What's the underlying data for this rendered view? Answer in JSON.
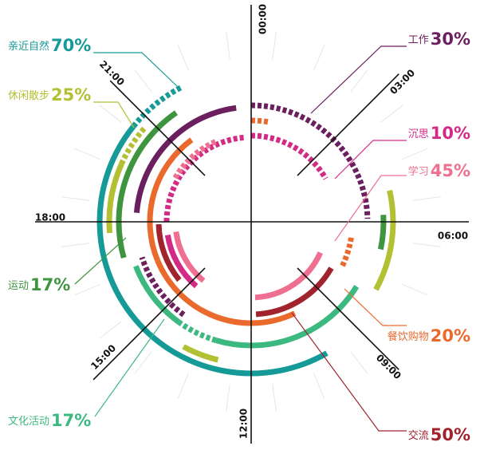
{
  "chart_data": {
    "type": "radial-timeline",
    "time_unit": "hour of day (24h clock, 00:00 at top, clockwise)",
    "time_labels": [
      {
        "text": "00:00",
        "hour": 0
      },
      {
        "text": "03:00",
        "hour": 3
      },
      {
        "text": "06:00",
        "hour": 6
      },
      {
        "text": "09:00",
        "hour": 9
      },
      {
        "text": "12:00",
        "hour": 12
      },
      {
        "text": "15:00",
        "hour": 15
      },
      {
        "text": "18:00",
        "hour": 18
      },
      {
        "text": "21:00",
        "hour": 21
      }
    ],
    "categories": [
      {
        "name": "亲近自然",
        "percent": "70%",
        "color": "#169a98",
        "label_side": "left"
      },
      {
        "name": "休闲散步",
        "percent": "25%",
        "color": "#b4c033",
        "label_side": "left"
      },
      {
        "name": "运动",
        "percent": "17%",
        "color": "#3f9440",
        "label_side": "left"
      },
      {
        "name": "文化活动",
        "percent": "17%",
        "color": "#3cb980",
        "label_side": "left"
      },
      {
        "name": "工作",
        "percent": "30%",
        "color": "#6b1f5e",
        "label_side": "right"
      },
      {
        "name": "沉思",
        "percent": "10%",
        "color": "#d32a86",
        "label_side": "right"
      },
      {
        "name": "学习",
        "percent": "45%",
        "color": "#ee6f8f",
        "label_side": "right"
      },
      {
        "name": "餐饮购物",
        "percent": "20%",
        "color": "#ea6a2e",
        "label_side": "right"
      },
      {
        "name": "交流",
        "percent": "50%",
        "color": "#a1232d",
        "label_side": "right"
      }
    ],
    "arcs": [
      {
        "category": "亲近自然",
        "start_hour": 10.0,
        "end_hour": 20.6,
        "style": "solid"
      },
      {
        "category": "亲近自然",
        "start_hour": 20.6,
        "end_hour": 22.2,
        "style": "dotted"
      },
      {
        "category": "休闲散步",
        "start_hour": 5.15,
        "end_hour": 7.9,
        "style": "solid"
      },
      {
        "category": "休闲散步",
        "start_hour": 12.9,
        "end_hour": 13.9,
        "style": "solid"
      },
      {
        "category": "休闲散步",
        "start_hour": 17.7,
        "end_hour": 19.6,
        "style": "solid"
      },
      {
        "category": "休闲散步",
        "start_hour": 19.6,
        "end_hour": 20.8,
        "style": "dotted"
      },
      {
        "category": "运动",
        "start_hour": 5.8,
        "end_hour": 6.8,
        "style": "solid"
      },
      {
        "category": "运动",
        "start_hour": 16.95,
        "end_hour": 21.7,
        "style": "solid"
      },
      {
        "category": "文化活动",
        "start_hour": 8.1,
        "end_hour": 13.1,
        "style": "solid"
      },
      {
        "category": "文化活动",
        "start_hour": 13.1,
        "end_hour": 14.4,
        "style": "dotted"
      },
      {
        "category": "文化活动",
        "start_hour": 14.4,
        "end_hour": 16.6,
        "style": "solid"
      },
      {
        "category": "工作",
        "start_hour": 0.0,
        "end_hour": 5.9,
        "style": "dotted"
      },
      {
        "category": "工作",
        "start_hour": 14.4,
        "end_hour": 16.8,
        "style": "dotted"
      },
      {
        "category": "工作",
        "start_hour": 18.3,
        "end_hour": 23.5,
        "style": "solid"
      },
      {
        "category": "沉思",
        "start_hour": 0.0,
        "end_hour": 4.0,
        "style": "dotted"
      },
      {
        "category": "沉思",
        "start_hour": 18.0,
        "end_hour": 23.7,
        "style": "dotted"
      },
      {
        "category": "沉思",
        "start_hour": 14.7,
        "end_hour": 17.4,
        "style": "solid"
      },
      {
        "category": "学习",
        "start_hour": 7.6,
        "end_hour": 11.8,
        "style": "solid"
      },
      {
        "category": "学习",
        "start_hour": 14.6,
        "end_hour": 17.5,
        "style": "solid"
      },
      {
        "category": "学习",
        "start_hour": 20.0,
        "end_hour": 22.5,
        "style": "dotted"
      },
      {
        "category": "餐饮购物",
        "start_hour": 0.0,
        "end_hour": 0.7,
        "style": "dotted"
      },
      {
        "category": "餐饮购物",
        "start_hour": 6.6,
        "end_hour": 7.8,
        "style": "dotted"
      },
      {
        "category": "餐饮购物",
        "start_hour": 10.3,
        "end_hour": 16.5,
        "style": "solid"
      },
      {
        "category": "餐饮购物",
        "start_hour": 16.5,
        "end_hour": 21.6,
        "style": "solid"
      },
      {
        "category": "交流",
        "start_hour": 8.0,
        "end_hour": 11.8,
        "style": "solid"
      },
      {
        "category": "交流",
        "start_hour": 15.4,
        "end_hour": 17.9,
        "style": "solid"
      }
    ]
  }
}
